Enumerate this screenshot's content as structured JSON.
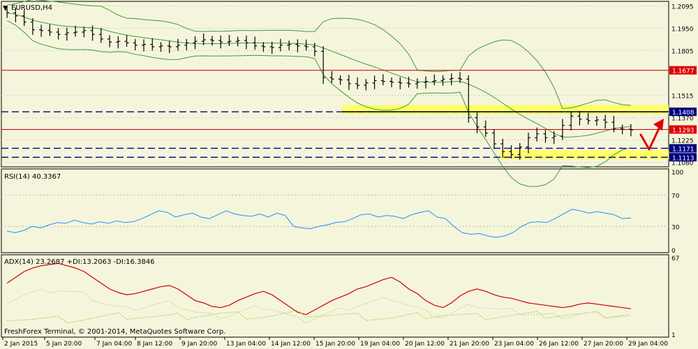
{
  "colors": {
    "bg": "#f5f5dc",
    "grid": "#b8b8a8",
    "candle": "#000000",
    "bollinger": "#3c9c3c",
    "support_line": "#000080",
    "resistance_line": "#c00000",
    "zone": "#ffff66",
    "rsi": "#1e90ff",
    "adx": "#cc0000",
    "di_plus": "#9acd32",
    "di_minus": "#c8c890",
    "arrow": "#e00000",
    "label_red": "#e00000",
    "label_blue": "#000080"
  },
  "main": {
    "symbol_label": "EURUSD,H4",
    "price_ticks": [
      "1.2095",
      "1.1950",
      "1.1805",
      "1.1515",
      "1.1370",
      "1.1225",
      "1.1080"
    ],
    "price_tick_values": [
      1.2095,
      1.195,
      1.1805,
      1.1515,
      1.137,
      1.1225,
      1.108
    ],
    "ylim": [
      1.106,
      1.2115
    ],
    "levels": [
      {
        "label": "1.1677",
        "value": 1.1677,
        "kind": "resistance"
      },
      {
        "label": "1.1408",
        "value": 1.1408,
        "kind": "support_dashed"
      },
      {
        "label": "1.1293",
        "value": 1.1293,
        "kind": "resistance"
      },
      {
        "label": "1.1171",
        "value": 1.1171,
        "kind": "support_dashed"
      },
      {
        "label": "1.1113",
        "value": 1.1113,
        "kind": "support_dashed"
      }
    ],
    "zones": [
      [
        1.1395,
        1.1452
      ],
      [
        1.11,
        1.1158
      ]
    ]
  },
  "rsi": {
    "label": "RSI(14) 40.3367",
    "ticks": [
      "100",
      "70",
      "30",
      "0"
    ],
    "tick_values": [
      100,
      70,
      30,
      0
    ]
  },
  "adx": {
    "label": "ADX(14) 23.2687 +DI:13.2063 -DI:16.3846",
    "ticks": [
      "67",
      "1"
    ],
    "tick_values": [
      67,
      1
    ],
    "copyright": "FreshForex Terminal, © 2001-2014, MetaQuotes Software Corp."
  },
  "time_axis": {
    "labels": [
      "2 Jan 2015",
      "5 Jan 20:00",
      "7 Jan 04:00",
      "8 Jan 12:00",
      "9 Jan 20:00",
      "13 Jan 04:00",
      "14 Jan 12:00",
      "15 Jan 20:00",
      "19 Jan 04:00",
      "20 Jan 12:00",
      "21 Jan 20:00",
      "23 Jan 04:00",
      "26 Jan 12:00",
      "27 Jan 20:00",
      "29 Jan 04:00"
    ]
  },
  "chart_data": {
    "type": "line",
    "title": "EURUSD,H4",
    "price_close_approx": [
      1.205,
      1.203,
      1.199,
      1.194,
      1.1935,
      1.1925,
      1.191,
      1.192,
      1.1925,
      1.1935,
      1.191,
      1.188,
      1.186,
      1.1865,
      1.1855,
      1.184,
      1.1845,
      1.183,
      1.1835,
      1.183,
      1.184,
      1.1855,
      1.1865,
      1.1875,
      1.187,
      1.186,
      1.1865,
      1.187,
      1.1855,
      1.1835,
      1.183,
      1.1825,
      1.184,
      1.1845,
      1.1835,
      1.183,
      1.18,
      1.163,
      1.162,
      1.1615,
      1.159,
      1.158,
      1.1595,
      1.161,
      1.1605,
      1.16,
      1.1595,
      1.159,
      1.16,
      1.1605,
      1.161,
      1.162,
      1.1625,
      1.162,
      1.137,
      1.131,
      1.127,
      1.12,
      1.115,
      1.113,
      1.118,
      1.124,
      1.1265,
      1.124,
      1.125,
      1.132,
      1.138,
      1.136,
      1.135,
      1.1355,
      1.134,
      1.13,
      1.1295,
      1.129
    ],
    "rsi_values_approx": [
      24,
      22,
      25,
      30,
      28,
      32,
      35,
      34,
      38,
      35,
      33,
      36,
      34,
      37,
      35,
      36,
      40,
      45,
      50,
      48,
      42,
      45,
      47,
      42,
      40,
      45,
      50,
      46,
      44,
      43,
      46,
      42,
      47,
      44,
      30,
      28,
      27,
      30,
      32,
      35,
      36,
      40,
      45,
      46,
      42,
      44,
      43,
      40,
      45,
      48,
      50,
      42,
      40,
      30,
      22,
      20,
      21,
      18,
      16,
      18,
      22,
      30,
      35,
      36,
      35,
      40,
      46,
      52,
      50,
      47,
      49,
      47,
      45,
      40,
      41
    ],
    "adx_values_approx": [
      45,
      50,
      55,
      58,
      60,
      61,
      62,
      60,
      58,
      55,
      50,
      45,
      40,
      37,
      35,
      36,
      38,
      40,
      42,
      43,
      40,
      35,
      30,
      28,
      25,
      24,
      26,
      30,
      33,
      36,
      38,
      35,
      30,
      25,
      20,
      18,
      22,
      26,
      30,
      33,
      36,
      40,
      42,
      45,
      48,
      50,
      46,
      40,
      36,
      30,
      26,
      24,
      28,
      34,
      38,
      40,
      38,
      35,
      33,
      32,
      30,
      28,
      27,
      26,
      25,
      24,
      25,
      27,
      28,
      27,
      26,
      25,
      24,
      23
    ]
  }
}
